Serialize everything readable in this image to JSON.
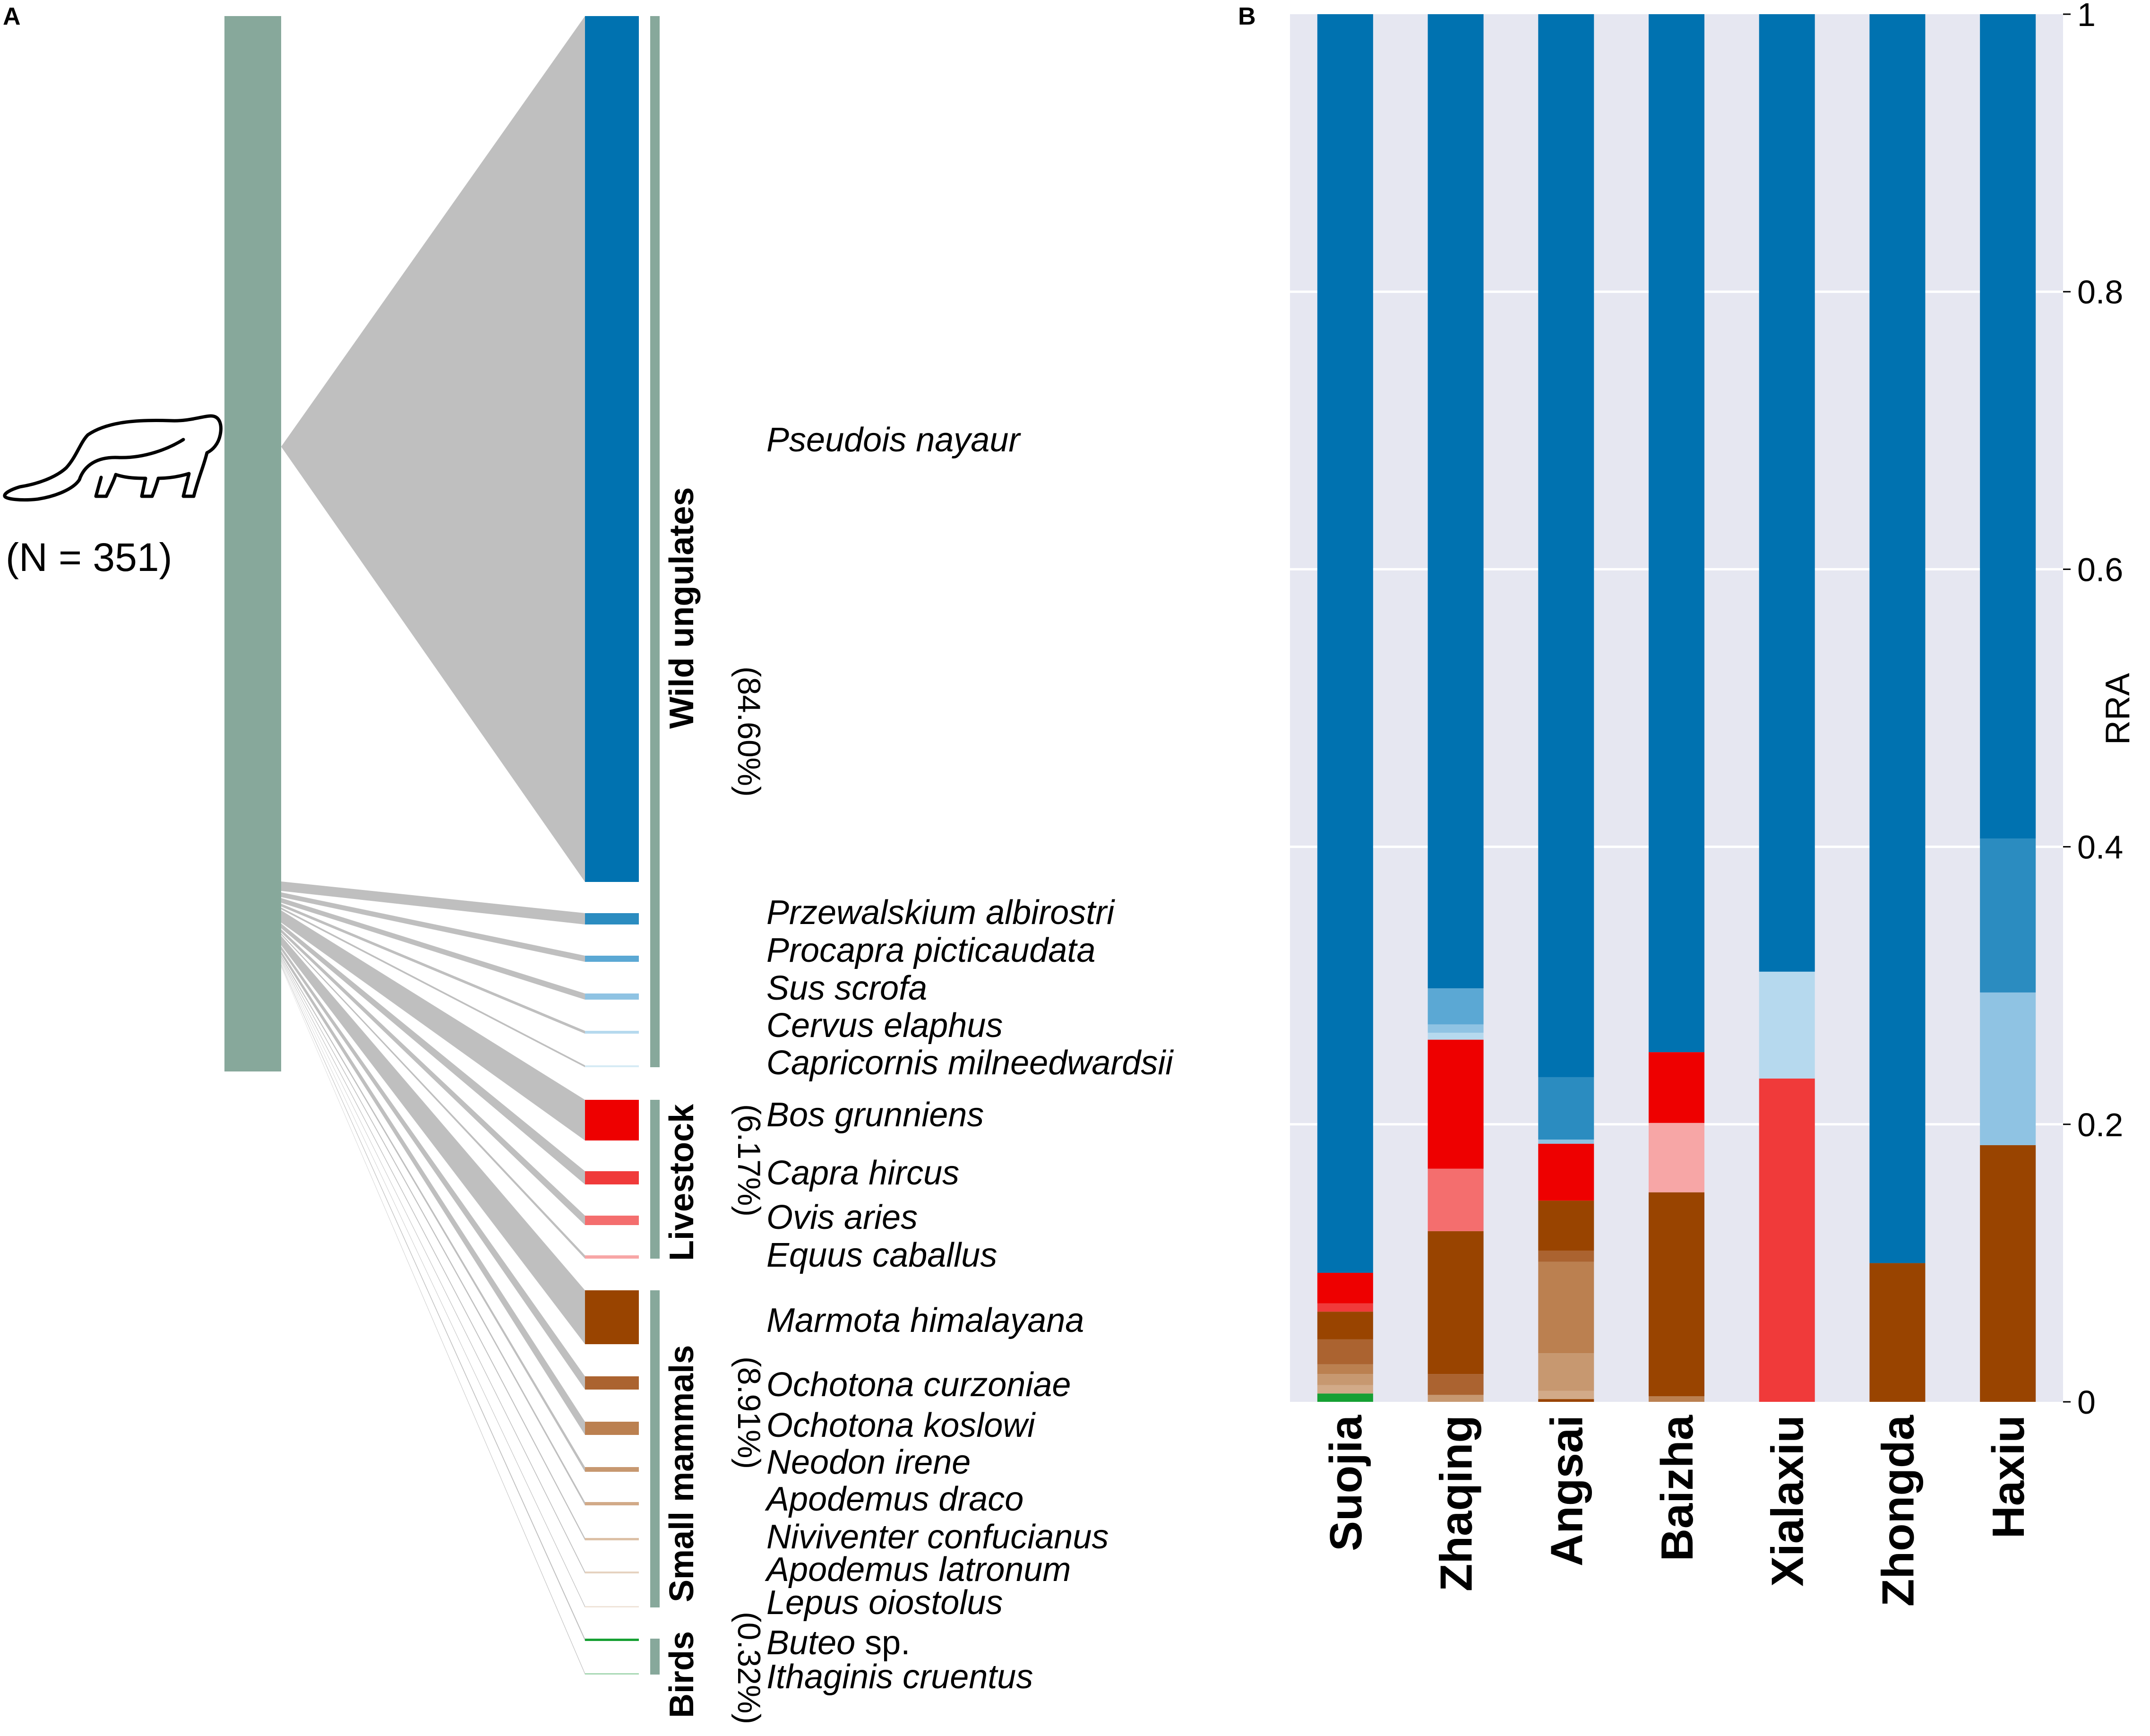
{
  "panels": {
    "a_label": "A",
    "b_label": "B"
  },
  "panel_a": {
    "sample_label": "(N = 351)",
    "colors": {
      "source_bar": "#87a89b",
      "connector": "#bfbfbf",
      "group_line": "#87a89b"
    },
    "species": [
      {
        "name": "Pseudois nayaur",
        "rra": 0.792,
        "color": "#0072b0"
      },
      {
        "name": "Przewalskium albirostri",
        "rra": 0.0105,
        "color": "#2b8cc0"
      },
      {
        "name": "Procapra picticaudata",
        "rra": 0.0052,
        "color": "#5ba8d4"
      },
      {
        "name": "Sus scrofa",
        "rra": 0.0052,
        "color": "#8fc3e3"
      },
      {
        "name": "Cervus elaphus",
        "rra": 0.002,
        "color": "#b6d9ee"
      },
      {
        "name": "Capricornis milneedwardsii",
        "rra": 0.0012,
        "color": "#d6ebf5"
      },
      {
        "name": "Bos grunniens",
        "rra": 0.038,
        "color": "#ee0000"
      },
      {
        "name": "Capra hircus",
        "rra": 0.012,
        "color": "#f03a3a"
      },
      {
        "name": "Ovis aries",
        "rra": 0.0085,
        "color": "#f46e6e"
      },
      {
        "name": "Equus caballus",
        "rra": 0.0026,
        "color": "#f7a6a6"
      },
      {
        "name": "Marmota himalayana",
        "rra": 0.049,
        "color": "#994400"
      },
      {
        "name": "Ochotona curzoniae",
        "rra": 0.012,
        "color": "#ab6330"
      },
      {
        "name": "Ochotona koslowi",
        "rra": 0.012,
        "color": "#bb8050"
      },
      {
        "name": "Neodon irene",
        "rra": 0.004,
        "color": "#c79870"
      },
      {
        "name": "Apodemus draco",
        "rra": 0.003,
        "color": "#d2aa88"
      },
      {
        "name": "Niviventer confucianus",
        "rra": 0.0018,
        "color": "#dcc0a6"
      },
      {
        "name": "Apodemus latronum",
        "rra": 0.0015,
        "color": "#e5d2c0"
      },
      {
        "name": "Lepus oiostolus",
        "rra": 0.0006,
        "color": "#efe4da"
      },
      {
        "name": "Buteo",
        "name_suffix": " sp.",
        "rra": 0.002,
        "color": "#16a033"
      },
      {
        "name": "Ithaginis cruentus",
        "rra": 0.0008,
        "color": "#a8d8b4"
      }
    ],
    "groups": [
      {
        "name": "Wild ungulates",
        "percent": "(84.60%)"
      },
      {
        "name": "Livestock",
        "percent": "(6.17%)"
      },
      {
        "name": "Small mammals",
        "percent": "(8.91%)"
      },
      {
        "name": "Birds",
        "percent": "(0.32%)"
      }
    ]
  },
  "chart_data": {
    "type": "bar",
    "stacked": true,
    "title": "",
    "xlabel": "",
    "ylabel": "RRA",
    "ylim": [
      0,
      1
    ],
    "yticks": [
      "0",
      "0.2",
      "0.4",
      "0.6",
      "0.8",
      "1"
    ],
    "ytick_values": [
      0,
      0.2,
      0.4,
      0.6,
      0.8,
      1
    ],
    "grid": true,
    "background": "#e6e7f1",
    "categories": [
      "Suojia",
      "Zhaqing",
      "Angsai",
      "Baizha",
      "Xialaxiu",
      "Zhongda",
      "Haxiu"
    ],
    "stacks": [
      [
        {
          "species": "Buteo sp.",
          "value": 0.006,
          "color": "#16a033"
        },
        {
          "species": "Apodemus draco",
          "value": 0.006,
          "color": "#d2aa88"
        },
        {
          "species": "Neodon irene",
          "value": 0.008,
          "color": "#c79870"
        },
        {
          "species": "Ochotona koslowi",
          "value": 0.007,
          "color": "#bb8050"
        },
        {
          "species": "Ochotona curzoniae",
          "value": 0.018,
          "color": "#ab6330"
        },
        {
          "species": "Marmota himalayana",
          "value": 0.02,
          "color": "#994400"
        },
        {
          "species": "Capra hircus",
          "value": 0.006,
          "color": "#f03a3a"
        },
        {
          "species": "Bos grunniens",
          "value": 0.022,
          "color": "#ee0000"
        },
        {
          "species": "Pseudois nayaur",
          "value": 0.907,
          "color": "#0072b0"
        }
      ],
      [
        {
          "species": "Neodon irene",
          "value": 0.005,
          "color": "#c79870"
        },
        {
          "species": "Ochotona curzoniae",
          "value": 0.015,
          "color": "#ab6330"
        },
        {
          "species": "Marmota himalayana",
          "value": 0.103,
          "color": "#994400"
        },
        {
          "species": "Ovis aries",
          "value": 0.045,
          "color": "#f46e6e"
        },
        {
          "species": "Bos grunniens",
          "value": 0.093,
          "color": "#ee0000"
        },
        {
          "species": "Cervus elaphus",
          "value": 0.005,
          "color": "#b6d9ee"
        },
        {
          "species": "Sus scrofa",
          "value": 0.006,
          "color": "#8fc3e3"
        },
        {
          "species": "Procapra picticaudata",
          "value": 0.026,
          "color": "#5ba8d4"
        },
        {
          "species": "Pseudois nayaur",
          "value": 0.702,
          "color": "#0072b0"
        }
      ],
      [
        {
          "species": "Marmota himalayana",
          "value": 0.002,
          "color": "#994400"
        },
        {
          "species": "Apodemus draco",
          "value": 0.006,
          "color": "#d2aa88"
        },
        {
          "species": "Neodon irene",
          "value": 0.027,
          "color": "#c79870"
        },
        {
          "species": "Ochotona koslowi",
          "value": 0.066,
          "color": "#bb8050"
        },
        {
          "species": "Ochotona curzoniae",
          "value": 0.008,
          "color": "#ab6330"
        },
        {
          "species": "Marmota himalayana",
          "value": 0.036,
          "color": "#994400"
        },
        {
          "species": "Bos grunniens",
          "value": 0.041,
          "color": "#ee0000"
        },
        {
          "species": "Sus scrofa",
          "value": 0.003,
          "color": "#8fc3e3"
        },
        {
          "species": "Przewalskium albirostri",
          "value": 0.045,
          "color": "#2b8cc0"
        },
        {
          "species": "Pseudois nayaur",
          "value": 0.766,
          "color": "#0072b0"
        }
      ],
      [
        {
          "species": "Ochotona koslowi",
          "value": 0.004,
          "color": "#bb8050"
        },
        {
          "species": "Marmota himalayana",
          "value": 0.147,
          "color": "#994400"
        },
        {
          "species": "Equus caballus",
          "value": 0.05,
          "color": "#f7a6a6"
        },
        {
          "species": "Bos grunniens",
          "value": 0.051,
          "color": "#ee0000"
        },
        {
          "species": "Pseudois nayaur",
          "value": 0.748,
          "color": "#0072b0"
        }
      ],
      [
        {
          "species": "Capra hircus",
          "value": 0.233,
          "color": "#f03a3a"
        },
        {
          "species": "Cervus elaphus",
          "value": 0.077,
          "color": "#b6d9ee"
        },
        {
          "species": "Pseudois nayaur",
          "value": 0.69,
          "color": "#0072b0"
        }
      ],
      [
        {
          "species": "Marmota himalayana",
          "value": 0.1,
          "color": "#994400"
        },
        {
          "species": "Pseudois nayaur",
          "value": 0.9,
          "color": "#0072b0"
        }
      ],
      [
        {
          "species": "Marmota himalayana",
          "value": 0.185,
          "color": "#994400"
        },
        {
          "species": "Sus scrofa",
          "value": 0.11,
          "color": "#8fc3e3"
        },
        {
          "species": "Przewalskium albirostri",
          "value": 0.111,
          "color": "#2b8cc0"
        },
        {
          "species": "Pseudois nayaur",
          "value": 0.594,
          "color": "#0072b0"
        }
      ]
    ]
  }
}
